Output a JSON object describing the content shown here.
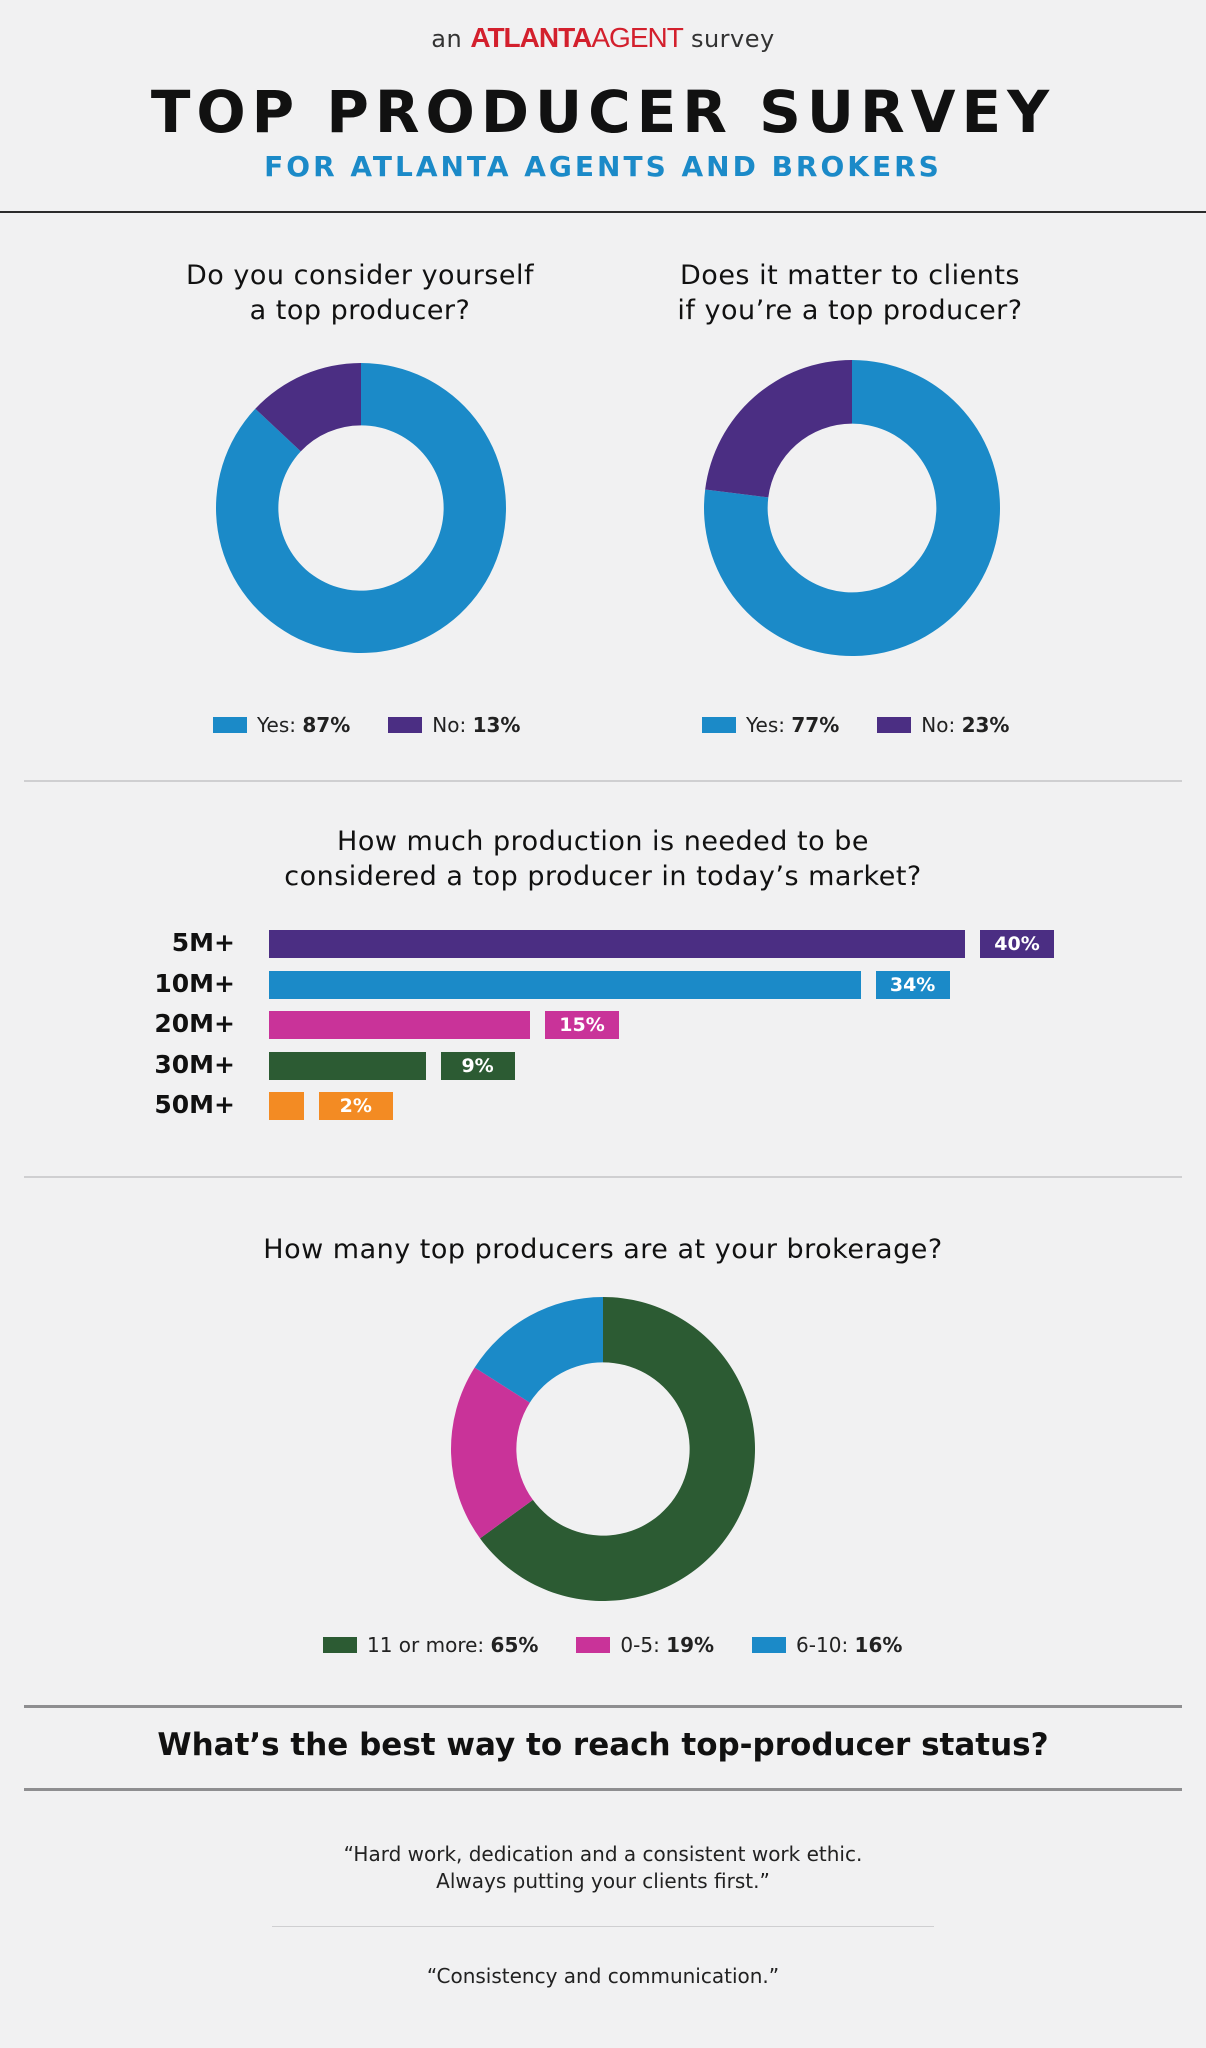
{
  "header": {
    "kicker_pre": "an",
    "kicker_brand_a": "ATLANTA",
    "kicker_brand_b": "AGENT",
    "kicker_post": "survey",
    "title": "TOP PRODUCER SURVEY",
    "subtitle": "FOR ATLANTA AGENTS AND BROKERS"
  },
  "colors": {
    "blue": "#1b8ac8",
    "purple": "#4b2e83",
    "magenta": "#c93399",
    "green": "#2c5b33",
    "orange": "#f38b23"
  },
  "chart_data": [
    {
      "type": "pie",
      "title": "Do you consider yourself a top producer?",
      "title_lines": [
        "Do you consider yourself",
        "a top producer?"
      ],
      "labels": [
        "Yes",
        "No"
      ],
      "values": [
        87,
        13
      ],
      "legend": [
        {
          "label": "Yes:",
          "value": "87%",
          "color": "#1b8ac8"
        },
        {
          "label": "No:",
          "value": "13%",
          "color": "#4b2e83"
        }
      ]
    },
    {
      "type": "pie",
      "title": "Does it matter to clients if you’re a top producer?",
      "title_lines": [
        "Does it matter to clients",
        "if you’re a top producer?"
      ],
      "labels": [
        "Yes",
        "No"
      ],
      "values": [
        77,
        23
      ],
      "legend": [
        {
          "label": "Yes:",
          "value": "77%",
          "color": "#1b8ac8"
        },
        {
          "label": "No:",
          "value": "23%",
          "color": "#4b2e83"
        }
      ]
    },
    {
      "type": "bar",
      "title": "How much production is needed to be considered a top producer in today’s market?",
      "title_lines": [
        "How much production is needed to be",
        "considered a top producer in today’s market?"
      ],
      "categories": [
        "5M+",
        "10M+",
        "20M+",
        "30M+",
        "50M+"
      ],
      "values": [
        40,
        34,
        15,
        9,
        2
      ],
      "value_labels": [
        "40%",
        "34%",
        "15%",
        "9%",
        "2%"
      ],
      "colors": [
        "#4b2e83",
        "#1b8ac8",
        "#c93399",
        "#2c5b33",
        "#f38b23"
      ]
    },
    {
      "type": "pie",
      "title": "How many top producers are at your brokerage?",
      "title_lines": [
        "How many top producers are at your brokerage?"
      ],
      "labels": [
        "11 or more",
        "0-5",
        "6-10"
      ],
      "values": [
        65,
        19,
        16
      ],
      "legend": [
        {
          "label": "11 or more:",
          "value": "65%",
          "color": "#2c5b33"
        },
        {
          "label": "0-5:",
          "value": "19%",
          "color": "#c93399"
        },
        {
          "label": "6-10:",
          "value": "16%",
          "color": "#1b8ac8"
        }
      ]
    }
  ],
  "status_question": "What’s the best way to reach top-producer status?",
  "quotes": [
    {
      "lines": [
        "“Hard work, dedication and a consistent work ethic.",
        "Always putting your clients first.”"
      ]
    },
    {
      "lines": [
        "“Consistency and communication.”"
      ]
    }
  ]
}
